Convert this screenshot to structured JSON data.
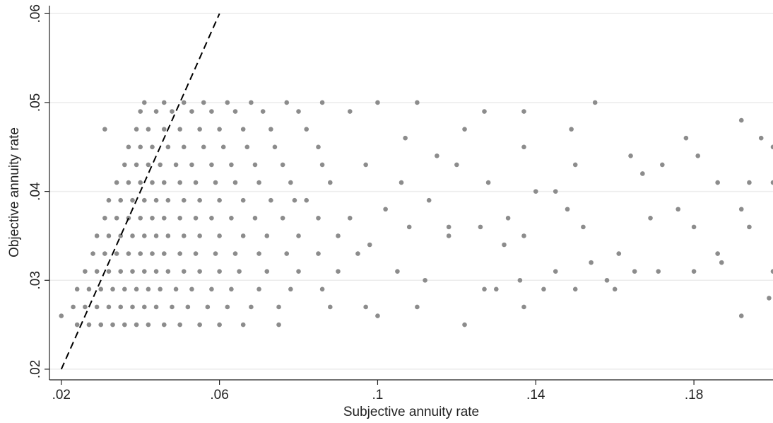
{
  "chart_data": {
    "type": "scatter",
    "x_label": "Subjective annuity rate",
    "y_label": "Objective annuity rate",
    "color": "#8c8c8c",
    "xlim": [
      0.017,
      0.2
    ],
    "ylim": [
      0.0188,
      0.0609
    ],
    "xticks": [
      {
        "value": 0.02,
        "label": ".02"
      },
      {
        "value": 0.06,
        "label": ".06"
      },
      {
        "value": 0.1,
        "label": ".1"
      },
      {
        "value": 0.14,
        "label": ".14"
      },
      {
        "value": 0.18,
        "label": ".18"
      }
    ],
    "yticks": [
      {
        "value": 0.02,
        "label": ".02"
      },
      {
        "value": 0.03,
        "label": ".03"
      },
      {
        "value": 0.04,
        "label": ".04"
      },
      {
        "value": 0.05,
        "label": ".05"
      },
      {
        "value": 0.06,
        "label": ".06"
      }
    ],
    "grid": true,
    "x": [
      0.024,
      0.027,
      0.03,
      0.033,
      0.036,
      0.039,
      0.042,
      0.046,
      0.05,
      0.055,
      0.06,
      0.066,
      0.023,
      0.026,
      0.029,
      0.032,
      0.035,
      0.038,
      0.041,
      0.044,
      0.048,
      0.052,
      0.057,
      0.062,
      0.068,
      0.075,
      0.024,
      0.027,
      0.03,
      0.033,
      0.036,
      0.039,
      0.042,
      0.045,
      0.049,
      0.053,
      0.058,
      0.063,
      0.07,
      0.078,
      0.086,
      0.026,
      0.029,
      0.032,
      0.035,
      0.038,
      0.041,
      0.044,
      0.047,
      0.051,
      0.055,
      0.06,
      0.065,
      0.072,
      0.08,
      0.09,
      0.028,
      0.031,
      0.034,
      0.037,
      0.04,
      0.043,
      0.046,
      0.05,
      0.054,
      0.059,
      0.064,
      0.07,
      0.077,
      0.085,
      0.095,
      0.029,
      0.032,
      0.035,
      0.038,
      0.041,
      0.044,
      0.047,
      0.051,
      0.055,
      0.06,
      0.066,
      0.072,
      0.08,
      0.09,
      0.031,
      0.034,
      0.037,
      0.04,
      0.043,
      0.046,
      0.05,
      0.054,
      0.058,
      0.063,
      0.069,
      0.076,
      0.085,
      0.032,
      0.035,
      0.038,
      0.041,
      0.044,
      0.047,
      0.051,
      0.055,
      0.06,
      0.066,
      0.073,
      0.082,
      0.034,
      0.037,
      0.04,
      0.043,
      0.046,
      0.05,
      0.054,
      0.059,
      0.064,
      0.07,
      0.078,
      0.036,
      0.039,
      0.042,
      0.045,
      0.049,
      0.053,
      0.058,
      0.063,
      0.069,
      0.076,
      0.086,
      0.037,
      0.04,
      0.043,
      0.047,
      0.051,
      0.056,
      0.061,
      0.067,
      0.074,
      0.039,
      0.042,
      0.046,
      0.05,
      0.055,
      0.06,
      0.066,
      0.073,
      0.082,
      0.04,
      0.044,
      0.048,
      0.053,
      0.058,
      0.064,
      0.071,
      0.08,
      0.041,
      0.046,
      0.051,
      0.056,
      0.062,
      0.068,
      0.077,
      0.086,
      0.1,
      0.11,
      0.127,
      0.137,
      0.155,
      0.192,
      0.197,
      0.2,
      0.178,
      0.181,
      0.164,
      0.172,
      0.137,
      0.12,
      0.128,
      0.14,
      0.145,
      0.15,
      0.167,
      0.186,
      0.194,
      0.113,
      0.106,
      0.097,
      0.118,
      0.126,
      0.133,
      0.137,
      0.148,
      0.152,
      0.161,
      0.169,
      0.176,
      0.18,
      0.186,
      0.192,
      0.194,
      0.2,
      0.105,
      0.112,
      0.118,
      0.127,
      0.13,
      0.136,
      0.145,
      0.15,
      0.158,
      0.165,
      0.171,
      0.18,
      0.187,
      0.2,
      0.199,
      0.192,
      0.122,
      0.11,
      0.1,
      0.097,
      0.088,
      0.075,
      0.098,
      0.093,
      0.102,
      0.108,
      0.132,
      0.137,
      0.142,
      0.154,
      0.16,
      0.02,
      0.031,
      0.122,
      0.149,
      0.093,
      0.085,
      0.088,
      0.079,
      0.115,
      0.107
    ],
    "y": [
      0.025,
      0.025,
      0.025,
      0.025,
      0.025,
      0.025,
      0.025,
      0.025,
      0.025,
      0.025,
      0.025,
      0.025,
      0.027,
      0.027,
      0.027,
      0.027,
      0.027,
      0.027,
      0.027,
      0.027,
      0.027,
      0.027,
      0.027,
      0.027,
      0.027,
      0.027,
      0.029,
      0.029,
      0.029,
      0.029,
      0.029,
      0.029,
      0.029,
      0.029,
      0.029,
      0.029,
      0.029,
      0.029,
      0.029,
      0.029,
      0.029,
      0.031,
      0.031,
      0.031,
      0.031,
      0.031,
      0.031,
      0.031,
      0.031,
      0.031,
      0.031,
      0.031,
      0.031,
      0.031,
      0.031,
      0.031,
      0.033,
      0.033,
      0.033,
      0.033,
      0.033,
      0.033,
      0.033,
      0.033,
      0.033,
      0.033,
      0.033,
      0.033,
      0.033,
      0.033,
      0.033,
      0.035,
      0.035,
      0.035,
      0.035,
      0.035,
      0.035,
      0.035,
      0.035,
      0.035,
      0.035,
      0.035,
      0.035,
      0.035,
      0.035,
      0.037,
      0.037,
      0.037,
      0.037,
      0.037,
      0.037,
      0.037,
      0.037,
      0.037,
      0.037,
      0.037,
      0.037,
      0.037,
      0.039,
      0.039,
      0.039,
      0.039,
      0.039,
      0.039,
      0.039,
      0.039,
      0.039,
      0.039,
      0.039,
      0.039,
      0.041,
      0.041,
      0.041,
      0.041,
      0.041,
      0.041,
      0.041,
      0.041,
      0.041,
      0.041,
      0.041,
      0.043,
      0.043,
      0.043,
      0.043,
      0.043,
      0.043,
      0.043,
      0.043,
      0.043,
      0.043,
      0.043,
      0.045,
      0.045,
      0.045,
      0.045,
      0.045,
      0.045,
      0.045,
      0.045,
      0.045,
      0.047,
      0.047,
      0.047,
      0.047,
      0.047,
      0.047,
      0.047,
      0.047,
      0.047,
      0.049,
      0.049,
      0.049,
      0.049,
      0.049,
      0.049,
      0.049,
      0.049,
      0.05,
      0.05,
      0.05,
      0.05,
      0.05,
      0.05,
      0.05,
      0.05,
      0.05,
      0.05,
      0.049,
      0.049,
      0.05,
      0.048,
      0.046,
      0.045,
      0.046,
      0.044,
      0.044,
      0.043,
      0.045,
      0.043,
      0.041,
      0.04,
      0.04,
      0.043,
      0.042,
      0.041,
      0.041,
      0.039,
      0.041,
      0.043,
      0.036,
      0.036,
      0.037,
      0.035,
      0.038,
      0.036,
      0.033,
      0.037,
      0.038,
      0.036,
      0.033,
      0.038,
      0.036,
      0.041,
      0.031,
      0.03,
      0.035,
      0.029,
      0.029,
      0.03,
      0.031,
      0.029,
      0.03,
      0.031,
      0.031,
      0.031,
      0.032,
      0.031,
      0.028,
      0.026,
      0.025,
      0.027,
      0.026,
      0.027,
      0.027,
      0.025,
      0.034,
      0.037,
      0.038,
      0.036,
      0.034,
      0.027,
      0.029,
      0.032,
      0.029,
      0.026,
      0.047,
      0.047,
      0.047,
      0.049,
      0.045,
      0.041,
      0.039,
      0.044,
      0.046
    ],
    "reference_line": {
      "x": [
        0.02,
        0.06
      ],
      "y": [
        0.02,
        0.06
      ],
      "color": "#000000",
      "dashed": true
    }
  }
}
